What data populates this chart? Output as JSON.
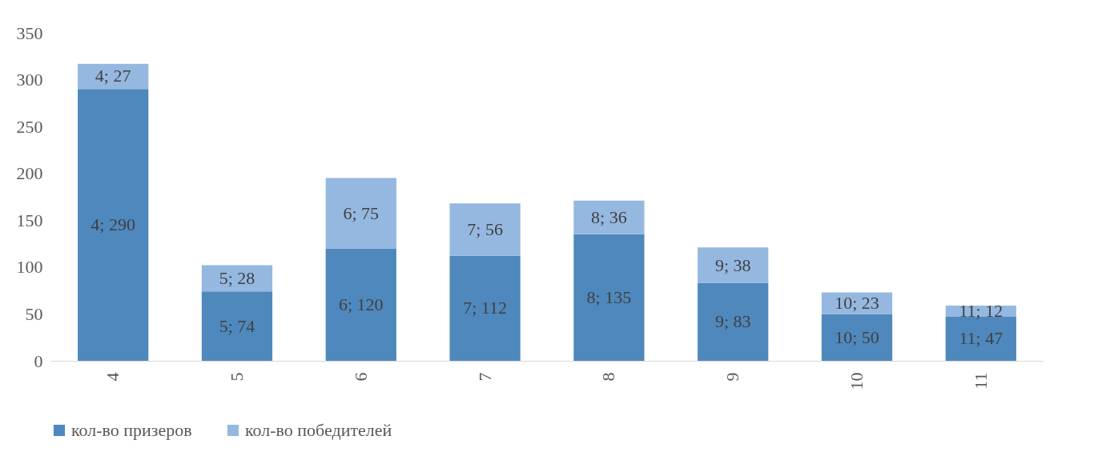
{
  "chart_data": {
    "type": "bar",
    "stacked": true,
    "categories": [
      "4",
      "5",
      "6",
      "7",
      "8",
      "9",
      "10",
      "11"
    ],
    "series": [
      {
        "name": "кол-во призеров",
        "color": "#4f88bd",
        "values": [
          290,
          74,
          120,
          112,
          135,
          83,
          50,
          47
        ],
        "value_labels": [
          "4; 290",
          "5; 74",
          "6; 120",
          "7; 112",
          "8; 135",
          "9; 83",
          "10; 50",
          "11; 47"
        ]
      },
      {
        "name": "кол-во победителей",
        "color": "#95b8e0",
        "values": [
          27,
          28,
          75,
          56,
          36,
          38,
          23,
          12
        ],
        "value_labels": [
          "4; 27",
          "5; 28",
          "6; 75",
          "7; 56",
          "8; 36",
          "9; 38",
          "10; 23",
          "11; 12"
        ]
      }
    ],
    "ylim": [
      0,
      350
    ],
    "yticks": [
      0,
      50,
      100,
      150,
      200,
      250,
      300,
      350
    ],
    "grid": false,
    "legend": "bottom"
  }
}
